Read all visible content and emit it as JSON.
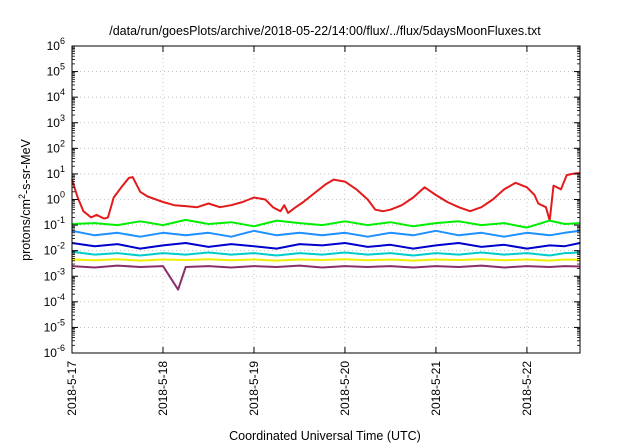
{
  "chart_data": {
    "type": "line",
    "title": "/data/run/goesPlots/archive/2018-05-22/14:00/flux/../flux/5daysMoonFluxes.txt",
    "xlabel": "Coordinated Universal Time (UTC)",
    "ylabel": "protons/cm2-s-sr-MeV",
    "ylabel_parts": {
      "pre": "protons/cm",
      "sup": "2",
      "post": "-s-sr-MeV"
    },
    "y_scale": "log",
    "ylim": [
      1e-06,
      1000000.0
    ],
    "y_ticks": [
      {
        "base": "10",
        "exp": "-6",
        "value": 1e-06
      },
      {
        "base": "10",
        "exp": "-5",
        "value": 1e-05
      },
      {
        "base": "10",
        "exp": "-4",
        "value": 0.0001
      },
      {
        "base": "10",
        "exp": "-3",
        "value": 0.001
      },
      {
        "base": "10",
        "exp": "-2",
        "value": 0.01
      },
      {
        "base": "10",
        "exp": "-1",
        "value": 0.1
      },
      {
        "base": "10",
        "exp": "0",
        "value": 1
      },
      {
        "base": "10",
        "exp": "1",
        "value": 10
      },
      {
        "base": "10",
        "exp": "2",
        "value": 100
      },
      {
        "base": "10",
        "exp": "3",
        "value": 1000
      },
      {
        "base": "10",
        "exp": "4",
        "value": 10000
      },
      {
        "base": "10",
        "exp": "5",
        "value": 100000
      },
      {
        "base": "10",
        "exp": "6",
        "value": 1000000
      }
    ],
    "xlim": [
      "2018-05-17T00:00",
      "2018-05-22T14:00"
    ],
    "x_ticks": [
      {
        "label": "2018-5-17",
        "date": "2018-05-17T00:00"
      },
      {
        "label": "2018-5-18",
        "date": "2018-05-18T00:00"
      },
      {
        "label": "2018-5-19",
        "date": "2018-05-19T00:00"
      },
      {
        "label": "2018-5-20",
        "date": "2018-05-20T00:00"
      },
      {
        "label": "2018-5-21",
        "date": "2018-05-21T00:00"
      },
      {
        "label": "2018-5-22",
        "date": "2018-05-22T00:00"
      }
    ],
    "grid": true,
    "legend": "none",
    "series": [
      {
        "color": "#e41a1c",
        "values": [
          [
            "2018-05-17T00:00",
            6
          ],
          [
            "2018-05-17T01:30",
            1.2
          ],
          [
            "2018-05-17T03:00",
            0.35
          ],
          [
            "2018-05-17T05:00",
            0.2
          ],
          [
            "2018-05-17T06:30",
            0.25
          ],
          [
            "2018-05-17T08:30",
            0.18
          ],
          [
            "2018-05-17T09:30",
            0.2
          ],
          [
            "2018-05-17T11:00",
            1.2
          ],
          [
            "2018-05-17T13:00",
            3
          ],
          [
            "2018-05-17T15:00",
            7
          ],
          [
            "2018-05-17T16:00",
            7.5
          ],
          [
            "2018-05-17T18:00",
            2
          ],
          [
            "2018-05-17T20:00",
            1.3
          ],
          [
            "2018-05-18T00:00",
            0.8
          ],
          [
            "2018-05-18T03:00",
            0.6
          ],
          [
            "2018-05-18T06:00",
            0.55
          ],
          [
            "2018-05-18T09:00",
            0.5
          ],
          [
            "2018-05-18T12:00",
            0.7
          ],
          [
            "2018-05-18T15:00",
            0.5
          ],
          [
            "2018-05-18T18:00",
            0.6
          ],
          [
            "2018-05-18T21:00",
            0.8
          ],
          [
            "2018-05-19T00:00",
            1.2
          ],
          [
            "2018-05-19T03:00",
            1.0
          ],
          [
            "2018-05-19T05:00",
            0.5
          ],
          [
            "2018-05-19T07:00",
            0.35
          ],
          [
            "2018-05-19T08:00",
            0.6
          ],
          [
            "2018-05-19T09:00",
            0.3
          ],
          [
            "2018-05-19T11:00",
            0.5
          ],
          [
            "2018-05-19T13:00",
            0.8
          ],
          [
            "2018-05-19T16:00",
            1.8
          ],
          [
            "2018-05-19T19:00",
            4
          ],
          [
            "2018-05-19T21:00",
            6
          ],
          [
            "2018-05-20T00:00",
            5
          ],
          [
            "2018-05-20T03:00",
            2.5
          ],
          [
            "2018-05-20T06:00",
            1.0
          ],
          [
            "2018-05-20T08:00",
            0.4
          ],
          [
            "2018-05-20T10:00",
            0.35
          ],
          [
            "2018-05-20T12:00",
            0.4
          ],
          [
            "2018-05-20T15:00",
            0.6
          ],
          [
            "2018-05-20T18:00",
            1.2
          ],
          [
            "2018-05-20T21:00",
            3
          ],
          [
            "2018-05-21T00:00",
            1.5
          ],
          [
            "2018-05-21T03:00",
            0.8
          ],
          [
            "2018-05-21T06:00",
            0.5
          ],
          [
            "2018-05-21T09:00",
            0.35
          ],
          [
            "2018-05-21T12:00",
            0.5
          ],
          [
            "2018-05-21T15:00",
            1.0
          ],
          [
            "2018-05-21T18:00",
            2.5
          ],
          [
            "2018-05-21T21:00",
            4.5
          ],
          [
            "2018-05-22T00:00",
            3
          ],
          [
            "2018-05-22T02:00",
            1.5
          ],
          [
            "2018-05-22T03:00",
            0.7
          ],
          [
            "2018-05-22T05:00",
            0.5
          ],
          [
            "2018-05-22T06:00",
            0.15
          ],
          [
            "2018-05-22T07:00",
            3.5
          ],
          [
            "2018-05-22T09:00",
            2.5
          ],
          [
            "2018-05-22T10:30",
            9
          ],
          [
            "2018-05-22T12:00",
            10
          ],
          [
            "2018-05-22T14:00",
            11
          ]
        ]
      },
      {
        "color": "#00ee00",
        "values": [
          [
            "2018-05-17T00:00",
            0.11
          ],
          [
            "2018-05-17T06:00",
            0.12
          ],
          [
            "2018-05-17T12:00",
            0.1
          ],
          [
            "2018-05-17T18:00",
            0.14
          ],
          [
            "2018-05-18T00:00",
            0.1
          ],
          [
            "2018-05-18T06:00",
            0.16
          ],
          [
            "2018-05-18T12:00",
            0.11
          ],
          [
            "2018-05-18T18:00",
            0.13
          ],
          [
            "2018-05-19T00:00",
            0.09
          ],
          [
            "2018-05-19T06:00",
            0.15
          ],
          [
            "2018-05-19T12:00",
            0.12
          ],
          [
            "2018-05-19T18:00",
            0.1
          ],
          [
            "2018-05-20T00:00",
            0.14
          ],
          [
            "2018-05-20T06:00",
            0.1
          ],
          [
            "2018-05-20T12:00",
            0.13
          ],
          [
            "2018-05-20T18:00",
            0.09
          ],
          [
            "2018-05-21T00:00",
            0.12
          ],
          [
            "2018-05-21T06:00",
            0.14
          ],
          [
            "2018-05-21T12:00",
            0.1
          ],
          [
            "2018-05-21T18:00",
            0.12
          ],
          [
            "2018-05-22T00:00",
            0.08
          ],
          [
            "2018-05-22T06:00",
            0.15
          ],
          [
            "2018-05-22T10:00",
            0.11
          ],
          [
            "2018-05-22T14:00",
            0.12
          ]
        ]
      },
      {
        "color": "#1e90ff",
        "values": [
          [
            "2018-05-17T00:00",
            0.06
          ],
          [
            "2018-05-17T06:00",
            0.04
          ],
          [
            "2018-05-17T12:00",
            0.05
          ],
          [
            "2018-05-17T18:00",
            0.035
          ],
          [
            "2018-05-18T00:00",
            0.05
          ],
          [
            "2018-05-18T06:00",
            0.04
          ],
          [
            "2018-05-18T12:00",
            0.05
          ],
          [
            "2018-05-18T18:00",
            0.035
          ],
          [
            "2018-05-19T00:00",
            0.06
          ],
          [
            "2018-05-19T06:00",
            0.04
          ],
          [
            "2018-05-19T12:00",
            0.05
          ],
          [
            "2018-05-19T18:00",
            0.04
          ],
          [
            "2018-05-20T00:00",
            0.05
          ],
          [
            "2018-05-20T06:00",
            0.035
          ],
          [
            "2018-05-20T12:00",
            0.05
          ],
          [
            "2018-05-20T18:00",
            0.04
          ],
          [
            "2018-05-21T00:00",
            0.06
          ],
          [
            "2018-05-21T06:00",
            0.04
          ],
          [
            "2018-05-21T12:00",
            0.05
          ],
          [
            "2018-05-21T18:00",
            0.035
          ],
          [
            "2018-05-22T00:00",
            0.05
          ],
          [
            "2018-05-22T06:00",
            0.04
          ],
          [
            "2018-05-22T10:00",
            0.05
          ],
          [
            "2018-05-22T14:00",
            0.06
          ]
        ]
      },
      {
        "color": "#0000cc",
        "values": [
          [
            "2018-05-17T00:00",
            0.02
          ],
          [
            "2018-05-17T06:00",
            0.015
          ],
          [
            "2018-05-17T12:00",
            0.018
          ],
          [
            "2018-05-17T18:00",
            0.012
          ],
          [
            "2018-05-18T00:00",
            0.016
          ],
          [
            "2018-05-18T06:00",
            0.02
          ],
          [
            "2018-05-18T12:00",
            0.014
          ],
          [
            "2018-05-18T18:00",
            0.018
          ],
          [
            "2018-05-19T00:00",
            0.015
          ],
          [
            "2018-05-19T06:00",
            0.012
          ],
          [
            "2018-05-19T12:00",
            0.018
          ],
          [
            "2018-05-19T18:00",
            0.016
          ],
          [
            "2018-05-20T00:00",
            0.02
          ],
          [
            "2018-05-20T06:00",
            0.014
          ],
          [
            "2018-05-20T12:00",
            0.017
          ],
          [
            "2018-05-20T18:00",
            0.012
          ],
          [
            "2018-05-21T00:00",
            0.016
          ],
          [
            "2018-05-21T06:00",
            0.02
          ],
          [
            "2018-05-21T12:00",
            0.014
          ],
          [
            "2018-05-21T18:00",
            0.017
          ],
          [
            "2018-05-22T00:00",
            0.012
          ],
          [
            "2018-05-22T06:00",
            0.016
          ],
          [
            "2018-05-22T10:00",
            0.015
          ],
          [
            "2018-05-22T14:00",
            0.02
          ]
        ]
      },
      {
        "color": "#00cccc",
        "values": [
          [
            "2018-05-17T00:00",
            0.009
          ],
          [
            "2018-05-17T06:00",
            0.007
          ],
          [
            "2018-05-17T12:00",
            0.008
          ],
          [
            "2018-05-17T18:00",
            0.0065
          ],
          [
            "2018-05-18T00:00",
            0.008
          ],
          [
            "2018-05-18T06:00",
            0.007
          ],
          [
            "2018-05-18T12:00",
            0.0085
          ],
          [
            "2018-05-18T18:00",
            0.007
          ],
          [
            "2018-05-19T00:00",
            0.008
          ],
          [
            "2018-05-19T06:00",
            0.0065
          ],
          [
            "2018-05-19T12:00",
            0.008
          ],
          [
            "2018-05-19T18:00",
            0.007
          ],
          [
            "2018-05-20T00:00",
            0.0085
          ],
          [
            "2018-05-20T06:00",
            0.007
          ],
          [
            "2018-05-20T12:00",
            0.008
          ],
          [
            "2018-05-20T18:00",
            0.0065
          ],
          [
            "2018-05-21T00:00",
            0.008
          ],
          [
            "2018-05-21T06:00",
            0.007
          ],
          [
            "2018-05-21T12:00",
            0.0085
          ],
          [
            "2018-05-21T18:00",
            0.007
          ],
          [
            "2018-05-22T00:00",
            0.008
          ],
          [
            "2018-05-22T06:00",
            0.0065
          ],
          [
            "2018-05-22T10:00",
            0.008
          ],
          [
            "2018-05-22T14:00",
            0.0085
          ]
        ]
      },
      {
        "color": "#eeee00",
        "values": [
          [
            "2018-05-17T00:00",
            0.0045
          ],
          [
            "2018-05-17T06:00",
            0.0042
          ],
          [
            "2018-05-17T12:00",
            0.0046
          ],
          [
            "2018-05-17T18:00",
            0.0041
          ],
          [
            "2018-05-18T00:00",
            0.0045
          ],
          [
            "2018-05-18T06:00",
            0.0043
          ],
          [
            "2018-05-18T12:00",
            0.0046
          ],
          [
            "2018-05-18T18:00",
            0.0042
          ],
          [
            "2018-05-19T00:00",
            0.0045
          ],
          [
            "2018-05-19T06:00",
            0.0041
          ],
          [
            "2018-05-19T12:00",
            0.0045
          ],
          [
            "2018-05-19T18:00",
            0.0043
          ],
          [
            "2018-05-20T00:00",
            0.0046
          ],
          [
            "2018-05-20T06:00",
            0.0042
          ],
          [
            "2018-05-20T12:00",
            0.0045
          ],
          [
            "2018-05-20T18:00",
            0.0041
          ],
          [
            "2018-05-21T00:00",
            0.0045
          ],
          [
            "2018-05-21T06:00",
            0.0043
          ],
          [
            "2018-05-21T12:00",
            0.0046
          ],
          [
            "2018-05-21T18:00",
            0.0042
          ],
          [
            "2018-05-22T00:00",
            0.0045
          ],
          [
            "2018-05-22T06:00",
            0.0041
          ],
          [
            "2018-05-22T10:00",
            0.0045
          ],
          [
            "2018-05-22T14:00",
            0.0044
          ]
        ]
      },
      {
        "color": "#8b2f6b",
        "values": [
          [
            "2018-05-17T00:00",
            0.0025
          ],
          [
            "2018-05-17T06:00",
            0.0022
          ],
          [
            "2018-05-17T12:00",
            0.0026
          ],
          [
            "2018-05-17T18:00",
            0.0023
          ],
          [
            "2018-05-18T00:00",
            0.0025
          ],
          [
            "2018-05-18T04:00",
            0.0003
          ],
          [
            "2018-05-18T06:00",
            0.0023
          ],
          [
            "2018-05-18T12:00",
            0.0025
          ],
          [
            "2018-05-18T18:00",
            0.0022
          ],
          [
            "2018-05-19T00:00",
            0.0025
          ],
          [
            "2018-05-19T06:00",
            0.0023
          ],
          [
            "2018-05-19T12:00",
            0.0026
          ],
          [
            "2018-05-19T18:00",
            0.0022
          ],
          [
            "2018-05-20T00:00",
            0.0025
          ],
          [
            "2018-05-20T06:00",
            0.0023
          ],
          [
            "2018-05-20T12:00",
            0.0025
          ],
          [
            "2018-05-20T18:00",
            0.0022
          ],
          [
            "2018-05-21T00:00",
            0.0025
          ],
          [
            "2018-05-21T06:00",
            0.0023
          ],
          [
            "2018-05-21T12:00",
            0.0026
          ],
          [
            "2018-05-21T18:00",
            0.0022
          ],
          [
            "2018-05-22T00:00",
            0.0025
          ],
          [
            "2018-05-22T06:00",
            0.0023
          ],
          [
            "2018-05-22T10:00",
            0.0025
          ],
          [
            "2018-05-22T14:00",
            0.0024
          ]
        ]
      }
    ]
  }
}
